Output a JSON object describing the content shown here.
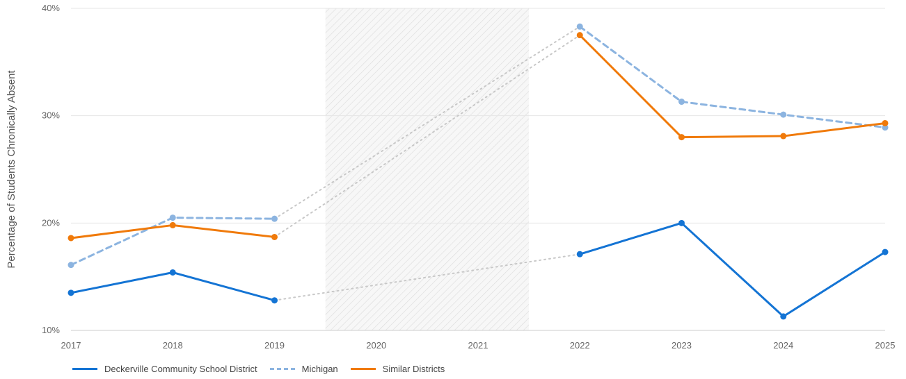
{
  "chart_data": {
    "type": "line",
    "ylabel": "Percentage of Students Chronically Absent",
    "xlabel": "",
    "x": [
      2017,
      2018,
      2019,
      2020,
      2021,
      2022,
      2023,
      2024,
      2025
    ],
    "x_tick_labels": [
      "2017",
      "2018",
      "2019",
      "2020",
      "2021",
      "2022",
      "2023",
      "2024",
      "2025"
    ],
    "ylim": [
      10,
      40
    ],
    "y_ticks": [
      10,
      20,
      30,
      40
    ],
    "y_tick_labels": [
      "10%",
      "20%",
      "30%",
      "40%"
    ],
    "grid": true,
    "shaded_region": {
      "from": 2019.5,
      "to": 2021.5,
      "pattern": "diagonal-hatch"
    },
    "gap_connector": {
      "from": 2019,
      "to": 2022,
      "style": "dotted",
      "color": "#c8c8c8"
    },
    "legend_position": "bottom-left",
    "series": [
      {
        "name": "Deckerville Community School District",
        "color": "#1474d4",
        "style": "solid",
        "values": [
          13.5,
          15.4,
          12.8,
          null,
          null,
          17.1,
          20.0,
          11.3,
          17.3
        ]
      },
      {
        "name": "Michigan",
        "color": "#8cb4e0",
        "style": "dashed",
        "values": [
          16.1,
          20.5,
          20.4,
          null,
          null,
          38.3,
          31.3,
          30.1,
          28.9
        ]
      },
      {
        "name": "Similar Districts",
        "color": "#f07a0a",
        "style": "solid",
        "values": [
          18.6,
          19.8,
          18.7,
          null,
          null,
          37.5,
          28.0,
          28.1,
          29.3
        ]
      }
    ]
  }
}
